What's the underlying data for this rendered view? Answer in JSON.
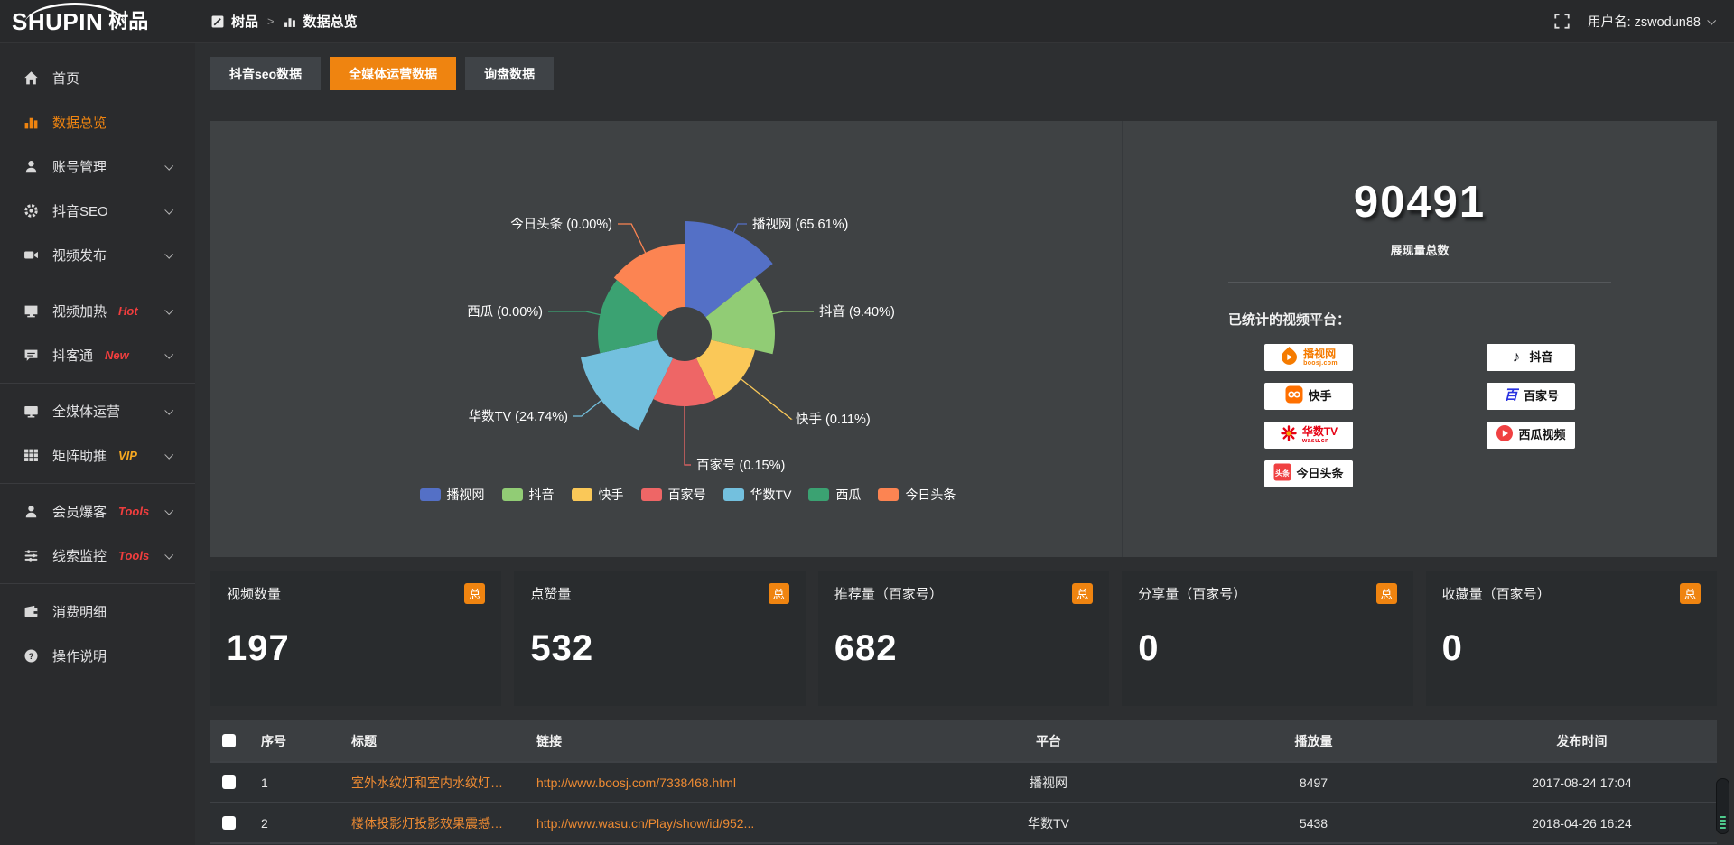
{
  "colors": {
    "accent": "#ef8410",
    "link": "#ee8b33",
    "hot_badge": "#f03e3e",
    "vip_badge": "#f6a821"
  },
  "topbar": {
    "logo_text": "SHUPIN",
    "logo_cn": "树品",
    "breadcrumb": {
      "root": "树品",
      "separator": ">",
      "current": "数据总览"
    },
    "username": "用户名: zswodun88"
  },
  "sidebar": {
    "items": [
      {
        "id": "home",
        "label": "首页",
        "icon": "home"
      },
      {
        "id": "data-overview",
        "label": "数据总览",
        "icon": "chart",
        "active": true
      },
      {
        "id": "account-manage",
        "label": "账号管理",
        "icon": "user",
        "chevron": true
      },
      {
        "id": "douyin-seo",
        "label": "抖音SEO",
        "icon": "gear",
        "chevron": true
      },
      {
        "id": "video-publish",
        "label": "视频发布",
        "icon": "video",
        "chevron": true
      },
      {
        "type": "divider"
      },
      {
        "id": "video-heat",
        "label": "视频加热",
        "icon": "screen",
        "badge": "Hot",
        "badge_color": "#f03e3e",
        "chevron": true
      },
      {
        "id": "douketong",
        "label": "抖客通",
        "icon": "chat",
        "badge": "New",
        "badge_color": "#f03e3e",
        "chevron": true
      },
      {
        "type": "divider"
      },
      {
        "id": "media-operation",
        "label": "全媒体运营",
        "icon": "monitor",
        "chevron": true
      },
      {
        "id": "matrix-boost",
        "label": "矩阵助推",
        "icon": "grid",
        "badge": "VIP",
        "badge_color": "#f6a821",
        "chevron": true
      },
      {
        "type": "divider"
      },
      {
        "id": "member-baoke",
        "label": "会员爆客",
        "icon": "user",
        "badge": "Tools",
        "badge_color": "#f03e3e",
        "chevron": true
      },
      {
        "id": "clue-monitor",
        "label": "线索监控",
        "icon": "sliders",
        "badge": "Tools",
        "badge_color": "#f03e3e",
        "chevron": true
      },
      {
        "type": "divider"
      },
      {
        "id": "consumption-detail",
        "label": "消费明细",
        "icon": "wallet"
      },
      {
        "id": "instructions",
        "label": "操作说明",
        "icon": "help"
      }
    ]
  },
  "tabs": [
    {
      "label": "抖音seo数据",
      "active": false
    },
    {
      "label": "全媒体运营数据",
      "active": true
    },
    {
      "label": "询盘数据",
      "active": false
    }
  ],
  "chart_data": {
    "type": "pie",
    "subtype": "nightingale-rose",
    "labels": [
      "播视网",
      "抖音",
      "快手",
      "百家号",
      "华数TV",
      "西瓜",
      "今日头条"
    ],
    "values_percent": [
      65.61,
      9.4,
      0.11,
      0.15,
      24.74,
      0.0,
      0.0
    ],
    "colors": [
      "#5470c6",
      "#91cc75",
      "#fac858",
      "#ee6666",
      "#73c0de",
      "#3ba272",
      "#fc8452"
    ],
    "label_format": "{name} ({percent}%)",
    "legend": [
      "播视网",
      "抖音",
      "快手",
      "百家号",
      "华数TV",
      "西瓜",
      "今日头条"
    ],
    "legend_position": "bottom"
  },
  "summary": {
    "total_value": "90491",
    "total_label": "展现量总数",
    "platforms_title": "已统计的视频平台：",
    "platforms_columns": [
      [
        {
          "id": "boosj",
          "name": "播视网",
          "sub": "boosj.com",
          "logo": "boosj-logo",
          "color": "#f57b00"
        },
        {
          "id": "kuaishou",
          "name": "快手",
          "logo": "kuaishou-logo"
        },
        {
          "id": "wasu",
          "name": "华数TV",
          "sub": "wasu.cn",
          "logo": "wasu-logo",
          "color": "#e60012"
        },
        {
          "id": "toutiao",
          "name": "今日头条",
          "logo": "toutiao-logo"
        }
      ],
      [
        {
          "id": "douyin",
          "name": "抖音",
          "logo": "douyin-logo"
        },
        {
          "id": "baijia",
          "name": "百家号",
          "logo": "baijia-logo"
        },
        {
          "id": "xigua",
          "name": "西瓜视频",
          "logo": "xigua-logo"
        }
      ]
    ]
  },
  "stat_cards": [
    {
      "label": "视频数量",
      "badge": "总",
      "value": "197"
    },
    {
      "label": "点赞量",
      "badge": "总",
      "value": "532"
    },
    {
      "label": "推荐量（百家号）",
      "badge": "总",
      "value": "682"
    },
    {
      "label": "分享量（百家号）",
      "badge": "总",
      "value": "0"
    },
    {
      "label": "收藏量（百家号）",
      "badge": "总",
      "value": "0"
    }
  ],
  "table": {
    "headers": [
      "序号",
      "标题",
      "链接",
      "平台",
      "播放量",
      "发布时间"
    ],
    "rows": [
      {
        "index": "1",
        "title": "室外水纹灯和室内水纹灯的区别和简介",
        "link": "http://www.boosj.com/7338468.html",
        "platform": "播视网",
        "plays": "8497",
        "published": "2017-08-24 17:04"
      },
      {
        "index": "2",
        "title": "楼体投影灯投影效果震撼上市",
        "link": "http://www.wasu.cn/Play/show/id/952...",
        "platform": "华数TV",
        "plays": "5438",
        "published": "2018-04-26 16:24"
      }
    ]
  }
}
